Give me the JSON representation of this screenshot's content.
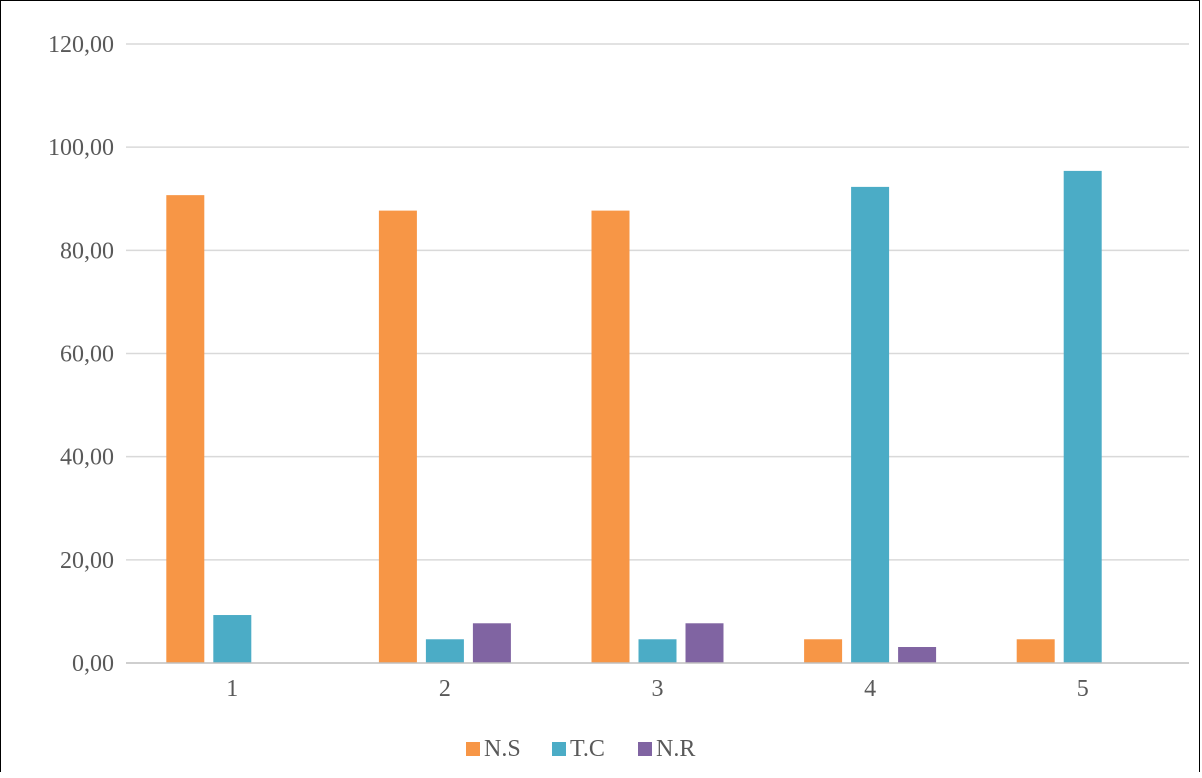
{
  "chart_data": {
    "type": "bar",
    "title": "",
    "xlabel": "",
    "ylabel": "",
    "categories": [
      "1",
      "2",
      "3",
      "4",
      "5"
    ],
    "series": [
      {
        "name": "N.S",
        "color": "#F79646",
        "values": [
          90.7,
          87.7,
          87.7,
          4.6,
          4.6
        ]
      },
      {
        "name": "T.C",
        "color": "#4BACC6",
        "values": [
          9.3,
          4.6,
          4.6,
          92.3,
          95.4
        ]
      },
      {
        "name": "N.R",
        "color": "#8064A2",
        "values": [
          null,
          7.7,
          7.7,
          3.1,
          null
        ]
      }
    ],
    "ylim": [
      0,
      120
    ],
    "yticks": [
      "0,00",
      "20,00",
      "40,00",
      "60,00",
      "80,00",
      "100,00",
      "120,00"
    ],
    "grid": true,
    "legend_position": "bottom"
  }
}
